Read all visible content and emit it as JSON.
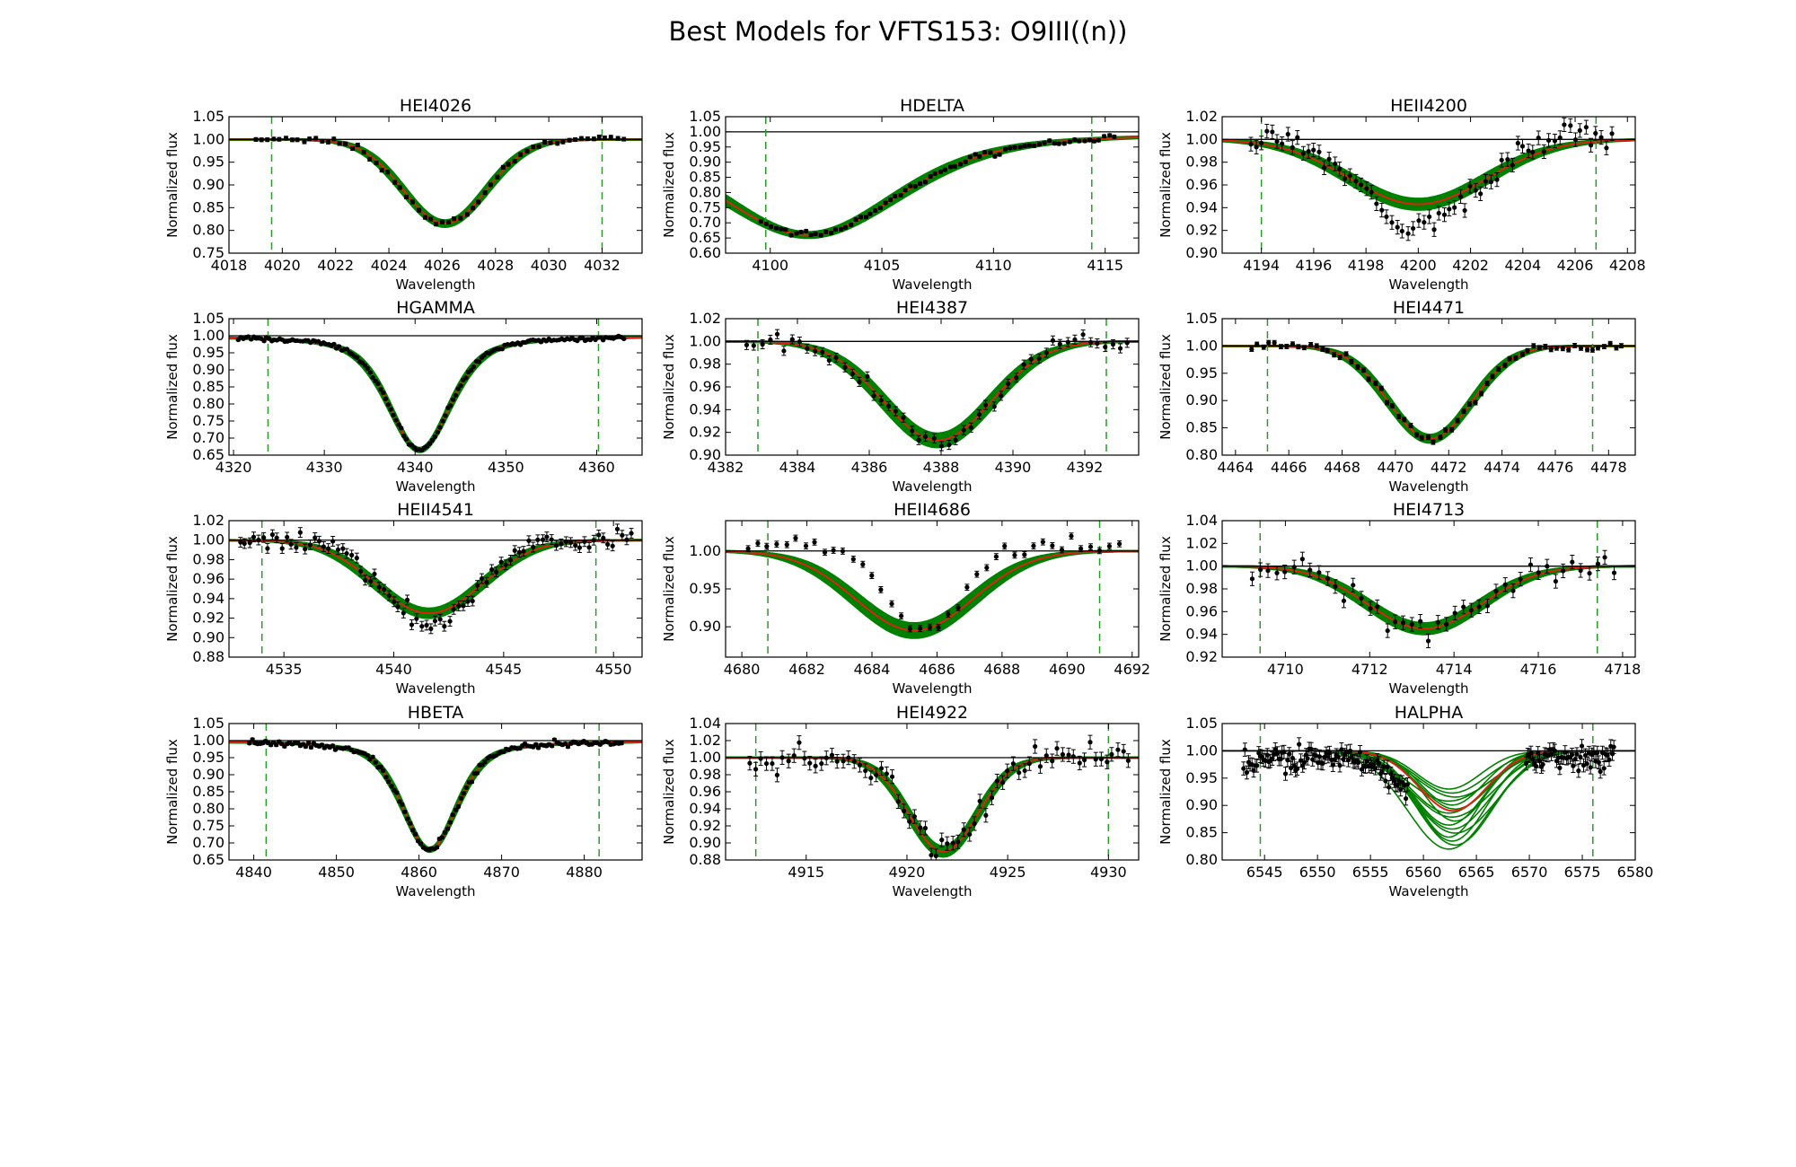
{
  "title": "Best Models for VFTS153: O9III((n))",
  "colors": {
    "model_fill": "#008000",
    "best_fit": "#e02010",
    "continuum": "#000000",
    "window": "#2a9a2a",
    "data": "#000000"
  },
  "chart_data": [
    {
      "type": "line",
      "title": "HEI4026",
      "xlabel": "Wavelength",
      "ylabel": "Normalized flux",
      "xlim": [
        4018,
        4033.5
      ],
      "ylim": [
        0.75,
        1.05
      ],
      "xticks": [
        4018,
        4020,
        4022,
        4024,
        4026,
        4028,
        4030,
        4032
      ],
      "yticks": [
        0.75,
        0.8,
        0.85,
        0.9,
        0.95,
        1.0,
        1.05
      ],
      "ytick_labels": [
        "0.75",
        "0.80",
        "0.85",
        "0.90",
        "0.95",
        "1.00",
        "1.05"
      ],
      "window": [
        4019.6,
        4032.0
      ],
      "line_center": 4026.1,
      "depth": 0.185,
      "width": 1.55,
      "band": 0.006,
      "data": {
        "x_range": [
          4019,
          4032.8
        ],
        "n": 62,
        "scatter": 0.004,
        "err": 0.004
      }
    },
    {
      "type": "line",
      "title": "HDELTA",
      "xlabel": "Wavelength",
      "ylabel": "Normalized flux",
      "xlim": [
        4098,
        4116.5
      ],
      "ylim": [
        0.6,
        1.05
      ],
      "xticks": [
        4100,
        4105,
        4110,
        4115
      ],
      "yticks": [
        0.6,
        0.65,
        0.7,
        0.75,
        0.8,
        0.85,
        0.9,
        0.95,
        1.0,
        1.05
      ],
      "ytick_labels": [
        "0.60",
        "0.65",
        "0.70",
        "0.75",
        "0.80",
        "0.85",
        "0.90",
        "0.95",
        "1.00",
        "1.05"
      ],
      "window": [
        4099.8,
        4114.4
      ],
      "line_center": 4101.7,
      "depth": 0.34,
      "width": 4.0,
      "band": 0.008,
      "lorentz": true,
      "data": {
        "x_range": [
          4099.6,
          4115.4
        ],
        "n": 72,
        "scatter": 0.005,
        "err": 0.005
      }
    },
    {
      "type": "line",
      "title": "HEII4200",
      "xlabel": "Wavelength",
      "ylabel": "Normalized flux",
      "xlim": [
        4192.5,
        4208.3
      ],
      "ylim": [
        0.9,
        1.02
      ],
      "xticks": [
        4194,
        4196,
        4198,
        4200,
        4202,
        4204,
        4206,
        4208
      ],
      "yticks": [
        0.9,
        0.92,
        0.94,
        0.96,
        0.98,
        1.0,
        1.02
      ],
      "ytick_labels": [
        "0.90",
        "0.92",
        "0.94",
        "0.96",
        "0.98",
        "1.00",
        "1.02"
      ],
      "window": [
        4194.0,
        4206.8
      ],
      "line_center": 4200.0,
      "depth": 0.057,
      "width": 2.6,
      "band": 0.004,
      "data": {
        "x_range": [
          4193.6,
          4207.4
        ],
        "n": 70,
        "scatter": 0.006,
        "err": 0.006,
        "depth": 0.075,
        "width": 2.0
      }
    },
    {
      "type": "line",
      "title": "HGAMMA",
      "xlabel": "Wavelength",
      "ylabel": "Normalized flux",
      "xlim": [
        4319.5,
        4365
      ],
      "ylim": [
        0.65,
        1.05
      ],
      "xticks": [
        4320,
        4330,
        4340,
        4350,
        4360
      ],
      "yticks": [
        0.65,
        0.7,
        0.75,
        0.8,
        0.85,
        0.9,
        0.95,
        1.0,
        1.05
      ],
      "ytick_labels": [
        "0.65",
        "0.70",
        "0.75",
        "0.80",
        "0.85",
        "0.90",
        "0.95",
        "1.00",
        "1.05"
      ],
      "window": [
        4323.8,
        4360.2
      ],
      "line_center": 4340.5,
      "depth": 0.335,
      "width": 3.3,
      "band": 0.005,
      "lorentz": true,
      "data": {
        "x_range": [
          4320.5,
          4363
        ],
        "n": 150,
        "scatter": 0.003,
        "err": 0.003
      }
    },
    {
      "type": "line",
      "title": "HEI4387",
      "xlabel": "Wavelength",
      "ylabel": "Normalized flux",
      "xlim": [
        4382,
        4393.5
      ],
      "ylim": [
        0.9,
        1.02
      ],
      "xticks": [
        4382,
        4384,
        4386,
        4388,
        4390,
        4392
      ],
      "yticks": [
        0.9,
        0.92,
        0.94,
        0.96,
        0.98,
        1.0,
        1.02
      ],
      "ytick_labels": [
        "0.90",
        "0.92",
        "0.94",
        "0.96",
        "0.98",
        "1.00",
        "1.02"
      ],
      "window": [
        4382.9,
        4392.6
      ],
      "line_center": 4387.9,
      "depth": 0.087,
      "width": 1.5,
      "band": 0.005,
      "data": {
        "x_range": [
          4382.6,
          4393.2
        ],
        "n": 52,
        "scatter": 0.004,
        "err": 0.004
      }
    },
    {
      "type": "line",
      "title": "HEI4471",
      "xlabel": "Wavelength",
      "ylabel": "Normalized flux",
      "xlim": [
        4463.5,
        4479
      ],
      "ylim": [
        0.8,
        1.05
      ],
      "xticks": [
        4464,
        4466,
        4468,
        4470,
        4472,
        4474,
        4476,
        4478
      ],
      "yticks": [
        0.8,
        0.85,
        0.9,
        0.95,
        1.0,
        1.05
      ],
      "ytick_labels": [
        "0.80",
        "0.85",
        "0.90",
        "0.95",
        "1.00",
        "1.05"
      ],
      "window": [
        4465.2,
        4477.4
      ],
      "line_center": 4471.3,
      "depth": 0.17,
      "width": 1.55,
      "band": 0.006,
      "data": {
        "x_range": [
          4464.6,
          4478.5
        ],
        "n": 64,
        "scatter": 0.004,
        "err": 0.004
      }
    },
    {
      "type": "line",
      "title": "HEII4541",
      "xlabel": "Wavelength",
      "ylabel": "Normalized flux",
      "xlim": [
        4532.5,
        4551.3
      ],
      "ylim": [
        0.88,
        1.02
      ],
      "xticks": [
        4535,
        4540,
        4545,
        4550
      ],
      "yticks": [
        0.88,
        0.9,
        0.92,
        0.94,
        0.96,
        0.98,
        1.0,
        1.02
      ],
      "ytick_labels": [
        "0.88",
        "0.90",
        "0.92",
        "0.94",
        "0.96",
        "0.98",
        "1.00",
        "1.02"
      ],
      "window": [
        4534.0,
        4549.2
      ],
      "line_center": 4541.6,
      "depth": 0.075,
      "width": 2.4,
      "band": 0.004,
      "data": {
        "x_range": [
          4533,
          4550.8
        ],
        "n": 85,
        "scatter": 0.005,
        "err": 0.005,
        "depth": 0.09,
        "width": 2.0
      }
    },
    {
      "type": "line",
      "title": "HEII4686",
      "xlabel": "Wavelength",
      "ylabel": "Normalized flux",
      "xlim": [
        4679.5,
        4692.2
      ],
      "ylim": [
        0.86,
        1.04
      ],
      "xticks": [
        4680,
        4682,
        4684,
        4686,
        4688,
        4690,
        4692
      ],
      "yticks": [
        0.9,
        0.95,
        1.0
      ],
      "ytick_labels": [
        "0.90",
        "0.95",
        "1.00"
      ],
      "window": [
        4680.8,
        4691.0
      ],
      "line_center": 4685.3,
      "depth": 0.105,
      "width": 1.8,
      "band": 0.008,
      "data": {
        "x_range": [
          4680.2,
          4691.6
        ],
        "n": 40,
        "scatter": 0.004,
        "err": 0.004,
        "depth": 0.115,
        "width": 1.2,
        "center": 4685.6,
        "offset": 0.012
      }
    },
    {
      "type": "line",
      "title": "HEI4713",
      "xlabel": "Wavelength",
      "ylabel": "Normalized flux",
      "xlim": [
        4708.5,
        4718.3
      ],
      "ylim": [
        0.92,
        1.04
      ],
      "xticks": [
        4710,
        4712,
        4714,
        4716,
        4718
      ],
      "yticks": [
        0.92,
        0.94,
        0.96,
        0.98,
        1.0,
        1.02,
        1.04
      ],
      "ytick_labels": [
        "0.92",
        "0.94",
        "0.96",
        "0.98",
        "1.00",
        "1.02",
        "1.04"
      ],
      "window": [
        4709.4,
        4717.4
      ],
      "line_center": 4713.3,
      "depth": 0.055,
      "width": 1.35,
      "band": 0.004,
      "data": {
        "x_range": [
          4709.2,
          4717.8
        ],
        "n": 44,
        "scatter": 0.006,
        "err": 0.006
      }
    },
    {
      "type": "line",
      "title": "HBETA",
      "xlabel": "Wavelength",
      "ylabel": "Normalized flux",
      "xlim": [
        4837,
        4887
      ],
      "ylim": [
        0.65,
        1.05
      ],
      "xticks": [
        4840,
        4850,
        4860,
        4870,
        4880
      ],
      "yticks": [
        0.65,
        0.7,
        0.75,
        0.8,
        0.85,
        0.9,
        0.95,
        1.0,
        1.05
      ],
      "ytick_labels": [
        "0.65",
        "0.70",
        "0.75",
        "0.80",
        "0.85",
        "0.90",
        "0.95",
        "1.00",
        "1.05"
      ],
      "window": [
        4841.5,
        4881.8
      ],
      "line_center": 4861.3,
      "depth": 0.32,
      "width": 3.2,
      "band": 0.005,
      "lorentz": true,
      "data": {
        "x_range": [
          4839.5,
          4884.5
        ],
        "n": 140,
        "scatter": 0.004,
        "err": 0.004
      }
    },
    {
      "type": "line",
      "title": "HEI4922",
      "xlabel": "Wavelength",
      "ylabel": "Normalized flux",
      "xlim": [
        4911,
        4931.5
      ],
      "ylim": [
        0.88,
        1.04
      ],
      "xticks": [
        4915,
        4920,
        4925,
        4930
      ],
      "yticks": [
        0.88,
        0.9,
        0.92,
        0.94,
        0.96,
        0.98,
        1.0,
        1.02,
        1.04
      ],
      "ytick_labels": [
        "0.88",
        "0.90",
        "0.92",
        "0.94",
        "0.96",
        "0.98",
        "1.00",
        "1.02",
        "1.04"
      ],
      "window": [
        4912.5,
        4930.0
      ],
      "line_center": 4921.8,
      "depth": 0.11,
      "width": 1.7,
      "band": 0.005,
      "data": {
        "x_range": [
          4912.2,
          4931
        ],
        "n": 70,
        "scatter": 0.008,
        "err": 0.008
      }
    },
    {
      "type": "line",
      "title": "HALPHA",
      "xlabel": "Wavelength",
      "ylabel": "Normalized flux",
      "xlim": [
        6541,
        6580
      ],
      "ylim": [
        0.8,
        1.05
      ],
      "xticks": [
        6545,
        6550,
        6555,
        6560,
        6565,
        6570,
        6575,
        6580
      ],
      "yticks": [
        0.8,
        0.85,
        0.9,
        0.95,
        1.0,
        1.05
      ],
      "ytick_labels": [
        "0.80",
        "0.85",
        "0.90",
        "0.95",
        "1.00",
        "1.05"
      ],
      "window": [
        6544.6,
        6576.0
      ],
      "line_center": 6562.8,
      "depth": 0.11,
      "width": 3.2,
      "band": 0.045,
      "halpha": true,
      "data": {
        "x_range": [
          6543,
          6578
        ],
        "n": 220,
        "scatter": 0.012,
        "err": 0.012,
        "gap": [
          6558.6,
          6569.6
        ]
      }
    }
  ]
}
